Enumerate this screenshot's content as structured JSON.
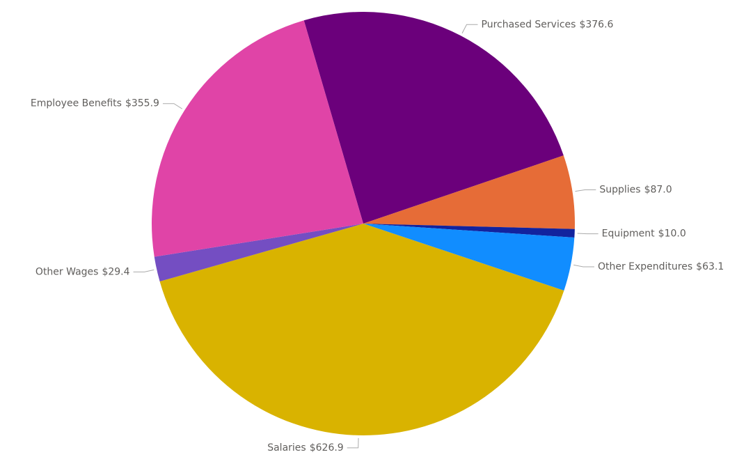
{
  "chart_data": {
    "type": "pie",
    "categories": [
      "Purchased Services",
      "Supplies",
      "Equipment",
      "Other Expenditures",
      "Salaries",
      "Other Wages",
      "Employee Benefits"
    ],
    "values": [
      376.6,
      87.0,
      10.0,
      63.1,
      626.9,
      29.4,
      355.9
    ],
    "value_labels": [
      "$376.6",
      "$87.0",
      "$10.0",
      "$63.1",
      "$626.9",
      "$29.4",
      "$355.9"
    ],
    "colors": [
      "#6b007b",
      "#e66c37",
      "#12239e",
      "#118dff",
      "#d9b300",
      "#744ec2",
      "#e044a7"
    ]
  }
}
